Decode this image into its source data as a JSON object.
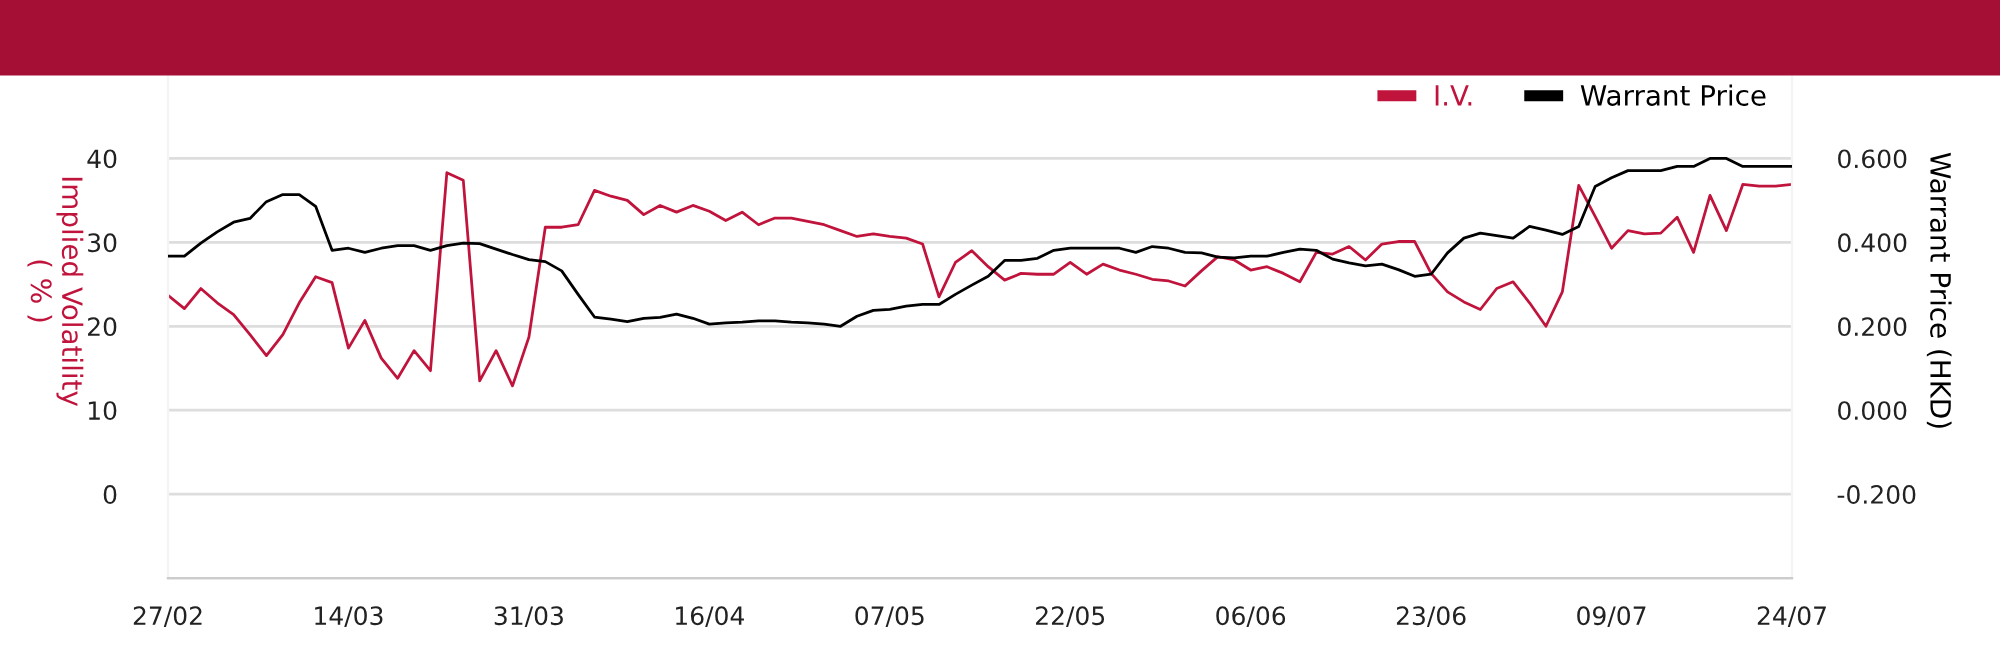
{
  "chart_data": {
    "type": "line",
    "categories": [
      "27/02",
      null,
      null,
      null,
      null,
      null,
      null,
      null,
      null,
      null,
      null,
      "14/03",
      null,
      null,
      null,
      null,
      null,
      null,
      null,
      null,
      null,
      null,
      "31/03",
      null,
      null,
      null,
      null,
      null,
      null,
      null,
      null,
      null,
      null,
      "16/04",
      null,
      null,
      null,
      null,
      null,
      null,
      null,
      null,
      null,
      null,
      "07/05",
      null,
      null,
      null,
      null,
      null,
      null,
      null,
      null,
      null,
      null,
      "22/05",
      null,
      null,
      null,
      null,
      null,
      null,
      null,
      null,
      null,
      null,
      "06/06",
      null,
      null,
      null,
      null,
      null,
      null,
      null,
      null,
      null,
      null,
      "23/06",
      null,
      null,
      null,
      null,
      null,
      null,
      null,
      null,
      null,
      null,
      "09/07",
      null,
      null,
      null,
      null,
      null,
      null,
      null,
      null,
      null,
      null,
      "24/07"
    ],
    "series": [
      {
        "name": "I.V.",
        "color": "#c0143c",
        "axis": "y",
        "values": [
          23.7,
          22.1,
          24.5,
          22.8,
          21.4,
          19,
          16.5,
          19,
          22.8,
          25.9,
          25.2,
          17.4,
          20.7,
          16.2,
          13.8,
          17.1,
          14.7,
          38.3,
          37.4,
          13.5,
          17.1,
          12.9,
          18.7,
          31.8,
          31.8,
          32.1,
          36.2,
          35.5,
          35,
          33.3,
          34.4,
          33.6,
          34.4,
          33.7,
          32.6,
          33.6,
          32.1,
          32.9,
          32.9,
          32.5,
          32.1,
          31.4,
          30.7,
          31,
          30.7,
          30.5,
          29.8,
          23.5,
          27.6,
          29,
          27.1,
          25.5,
          26.3,
          26.2,
          26.2,
          27.6,
          26.2,
          27.4,
          26.7,
          26.2,
          25.6,
          25.4,
          24.8,
          26.6,
          28.3,
          27.9,
          26.7,
          27.1,
          26.3,
          25.3,
          28.8,
          28.6,
          29.5,
          27.9,
          29.8,
          30.1,
          30.1,
          26.3,
          24.1,
          22.9,
          22,
          24.5,
          25.3,
          22.8,
          20,
          24.1,
          36.8,
          33.1,
          29.3,
          31.4,
          31,
          31.1,
          33,
          28.8,
          35.6,
          31.4,
          36.9,
          36.7,
          36.7,
          36.9
        ]
      },
      {
        "name": "Warrant Price",
        "color": "#000000",
        "axis": "y2",
        "values": [
          0.367,
          0.367,
          0.398,
          0.425,
          0.448,
          0.457,
          0.497,
          0.514,
          0.514,
          0.486,
          0.381,
          0.386,
          0.376,
          0.386,
          0.392,
          0.392,
          0.381,
          0.392,
          0.398,
          0.397,
          0.384,
          0.371,
          0.359,
          0.354,
          0.332,
          0.276,
          0.222,
          0.217,
          0.211,
          0.219,
          0.221,
          0.229,
          0.219,
          0.205,
          0.208,
          0.21,
          0.213,
          0.213,
          0.21,
          0.208,
          0.205,
          0.2,
          0.224,
          0.238,
          0.24,
          0.248,
          0.252,
          0.252,
          0.276,
          0.298,
          0.319,
          0.357,
          0.357,
          0.362,
          0.381,
          0.386,
          0.386,
          0.386,
          0.386,
          0.376,
          0.39,
          0.386,
          0.376,
          0.375,
          0.365,
          0.363,
          0.367,
          0.367,
          0.376,
          0.384,
          0.381,
          0.36,
          0.351,
          0.344,
          0.348,
          0.335,
          0.319,
          0.324,
          0.375,
          0.41,
          0.422,
          0.416,
          0.41,
          0.438,
          0.429,
          0.419,
          0.438,
          0.533,
          0.554,
          0.571,
          0.571,
          0.571,
          0.581,
          0.581,
          0.6,
          0.6,
          0.581,
          0.581,
          0.581,
          0.581
        ]
      }
    ],
    "ylabel": "Implied Volatility\n( % )",
    "y2label": "Warrant Price (HKD)",
    "ylim": [
      -10,
      50
    ],
    "yticks": [
      0,
      10,
      20,
      30,
      40
    ],
    "y2lim": [
      -0.4,
      0.8
    ],
    "y2ticks": [
      {
        "value": -0.2,
        "label": "-0.200"
      },
      {
        "value": 0,
        "label": "0.000"
      },
      {
        "value": 0.2,
        "label": "0.200"
      },
      {
        "value": 0.4,
        "label": "0.400"
      },
      {
        "value": 0.6,
        "label": "0.600"
      }
    ],
    "grid": "y",
    "legend": "top right",
    "marker": "none",
    "line_style": "solid"
  }
}
